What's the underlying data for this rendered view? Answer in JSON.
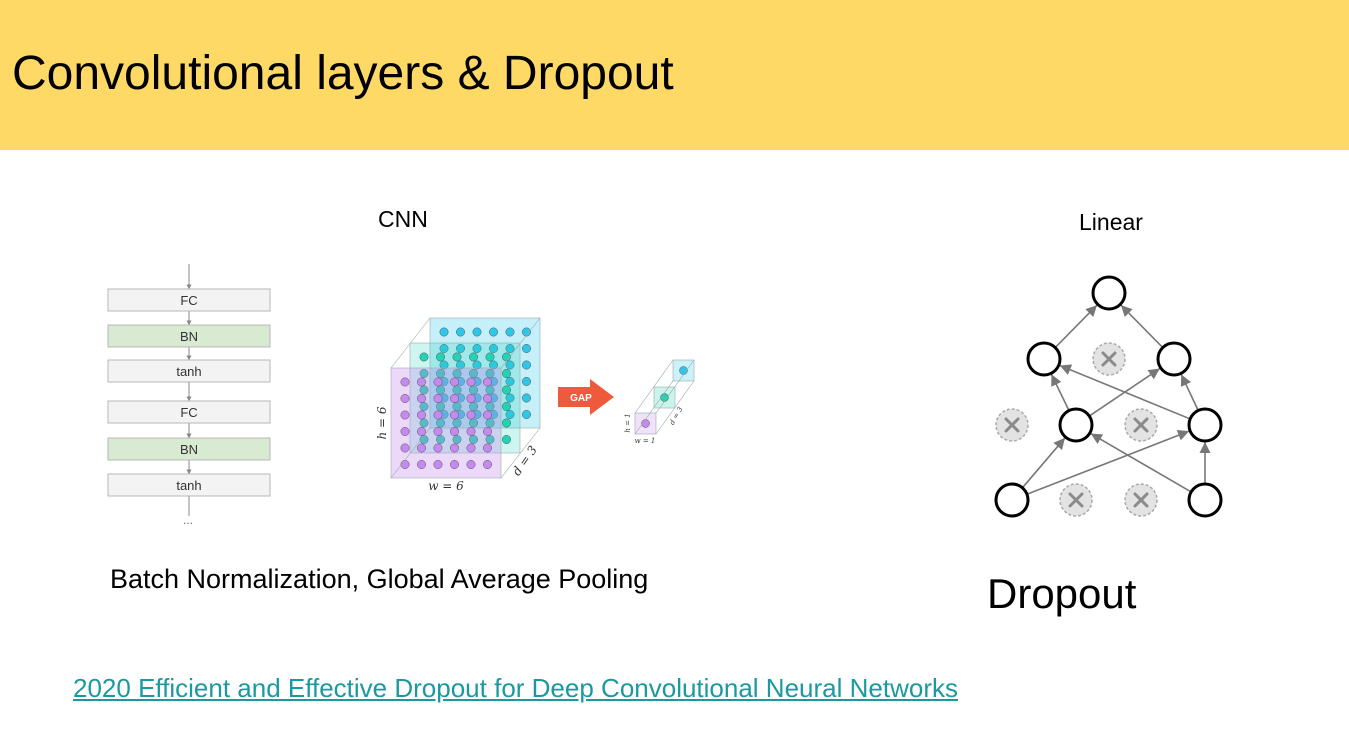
{
  "slide": {
    "title": "Convolutional layers & Dropout",
    "header_color": "#ffd966"
  },
  "cnn_section": {
    "label": "CNN",
    "caption": "Batch Normalization, Global Average Pooling",
    "layer_stack": {
      "layers": [
        {
          "label": "FC",
          "fill": "#f3f3f3"
        },
        {
          "label": "BN",
          "fill": "#d9ead3"
        },
        {
          "label": "tanh",
          "fill": "#f3f3f3"
        },
        {
          "label": "FC",
          "fill": "#f3f3f3"
        },
        {
          "label": "BN",
          "fill": "#d9ead3"
        },
        {
          "label": "tanh",
          "fill": "#f3f3f3"
        }
      ],
      "ellipsis": "..."
    },
    "gap_figure": {
      "input_h_label": "h = 6",
      "input_w_label": "w = 6",
      "input_d_label": "d = 3",
      "arrow_label": "GAP",
      "output_h_label": "h = 1",
      "output_w_label": "w = 1",
      "output_d_label": "d = 3",
      "colors": {
        "purple": "#c58af0",
        "green": "#22d3b5",
        "blue": "#2fc6ea",
        "arrow": "#f05a3c"
      }
    }
  },
  "linear_section": {
    "label": "Linear",
    "caption": "Dropout",
    "network": {
      "layers": [
        [
          "active"
        ],
        [
          "active",
          "dropped",
          "active"
        ],
        [
          "dropped",
          "active",
          "dropped",
          "active"
        ],
        [
          "active",
          "dropped",
          "dropped",
          "active"
        ]
      ]
    }
  },
  "reference": {
    "link_text": "2020 Efficient and Effective Dropout for Deep Convolutional Neural Networks",
    "link_color": "#1a9aa0"
  }
}
